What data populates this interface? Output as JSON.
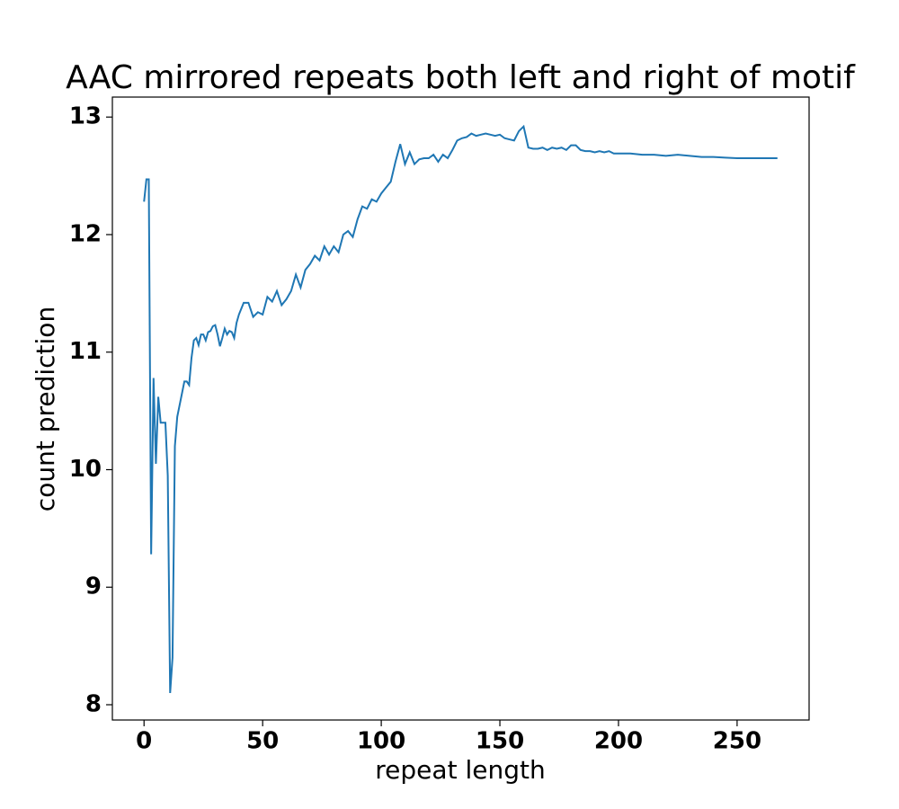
{
  "chart_data": {
    "type": "line",
    "title": "AAC mirrored repeats both left and right of motif",
    "xlabel": "repeat length",
    "ylabel": "count prediction",
    "x": [
      0,
      1,
      2,
      3,
      4,
      5,
      6,
      7,
      8,
      9,
      10,
      11,
      12,
      13,
      14,
      15,
      16,
      17,
      18,
      19,
      20,
      21,
      22,
      23,
      24,
      25,
      26,
      27,
      28,
      29,
      30,
      31,
      32,
      33,
      34,
      35,
      36,
      37,
      38,
      39,
      40,
      42,
      44,
      46,
      48,
      50,
      52,
      54,
      56,
      58,
      60,
      62,
      64,
      66,
      68,
      70,
      72,
      74,
      76,
      78,
      80,
      82,
      84,
      86,
      88,
      90,
      92,
      94,
      96,
      98,
      100,
      102,
      104,
      106,
      108,
      110,
      112,
      114,
      116,
      118,
      120,
      122,
      124,
      126,
      128,
      130,
      132,
      134,
      136,
      138,
      140,
      142,
      144,
      146,
      148,
      150,
      152,
      154,
      156,
      158,
      160,
      162,
      164,
      166,
      168,
      170,
      172,
      174,
      176,
      178,
      180,
      182,
      184,
      186,
      188,
      190,
      192,
      194,
      196,
      198,
      200,
      205,
      210,
      215,
      220,
      225,
      230,
      235,
      240,
      245,
      250,
      255,
      260,
      267
    ],
    "series": [
      {
        "name": "count prediction",
        "color": "#1f77b4",
        "values": [
          12.28,
          12.47,
          12.47,
          9.28,
          10.78,
          10.05,
          10.62,
          10.4,
          10.4,
          10.4,
          9.95,
          8.1,
          8.4,
          10.2,
          10.45,
          10.55,
          10.65,
          10.75,
          10.75,
          10.72,
          10.95,
          11.1,
          11.12,
          11.06,
          11.15,
          11.15,
          11.1,
          11.17,
          11.18,
          11.22,
          11.23,
          11.15,
          11.05,
          11.12,
          11.2,
          11.15,
          11.18,
          11.17,
          11.12,
          11.25,
          11.32,
          11.42,
          11.42,
          11.3,
          11.34,
          11.32,
          11.47,
          11.43,
          11.52,
          11.4,
          11.45,
          11.52,
          11.66,
          11.55,
          11.7,
          11.75,
          11.82,
          11.78,
          11.9,
          11.83,
          11.9,
          11.85,
          12.0,
          12.03,
          11.98,
          12.13,
          12.24,
          12.22,
          12.3,
          12.28,
          12.35,
          12.4,
          12.45,
          12.62,
          12.77,
          12.6,
          12.7,
          12.6,
          12.64,
          12.65,
          12.65,
          12.68,
          12.62,
          12.68,
          12.65,
          12.72,
          12.8,
          12.82,
          12.83,
          12.86,
          12.84,
          12.85,
          12.86,
          12.85,
          12.84,
          12.85,
          12.82,
          12.81,
          12.8,
          12.88,
          12.92,
          12.74,
          12.73,
          12.73,
          12.74,
          12.72,
          12.74,
          12.73,
          12.74,
          12.72,
          12.76,
          12.76,
          12.72,
          12.71,
          12.71,
          12.7,
          12.71,
          12.7,
          12.71,
          12.69,
          12.69,
          12.69,
          12.68,
          12.68,
          12.67,
          12.68,
          12.67,
          12.66,
          12.66,
          12.655,
          12.65,
          12.65,
          12.65,
          12.65
        ]
      }
    ],
    "xlim": [
      -13.35,
      280.35
    ],
    "ylim": [
      7.87,
      13.17
    ],
    "xticks": [
      0,
      50,
      100,
      150,
      200,
      250
    ],
    "yticks": [
      8,
      9,
      10,
      11,
      12,
      13
    ],
    "grid": false
  }
}
